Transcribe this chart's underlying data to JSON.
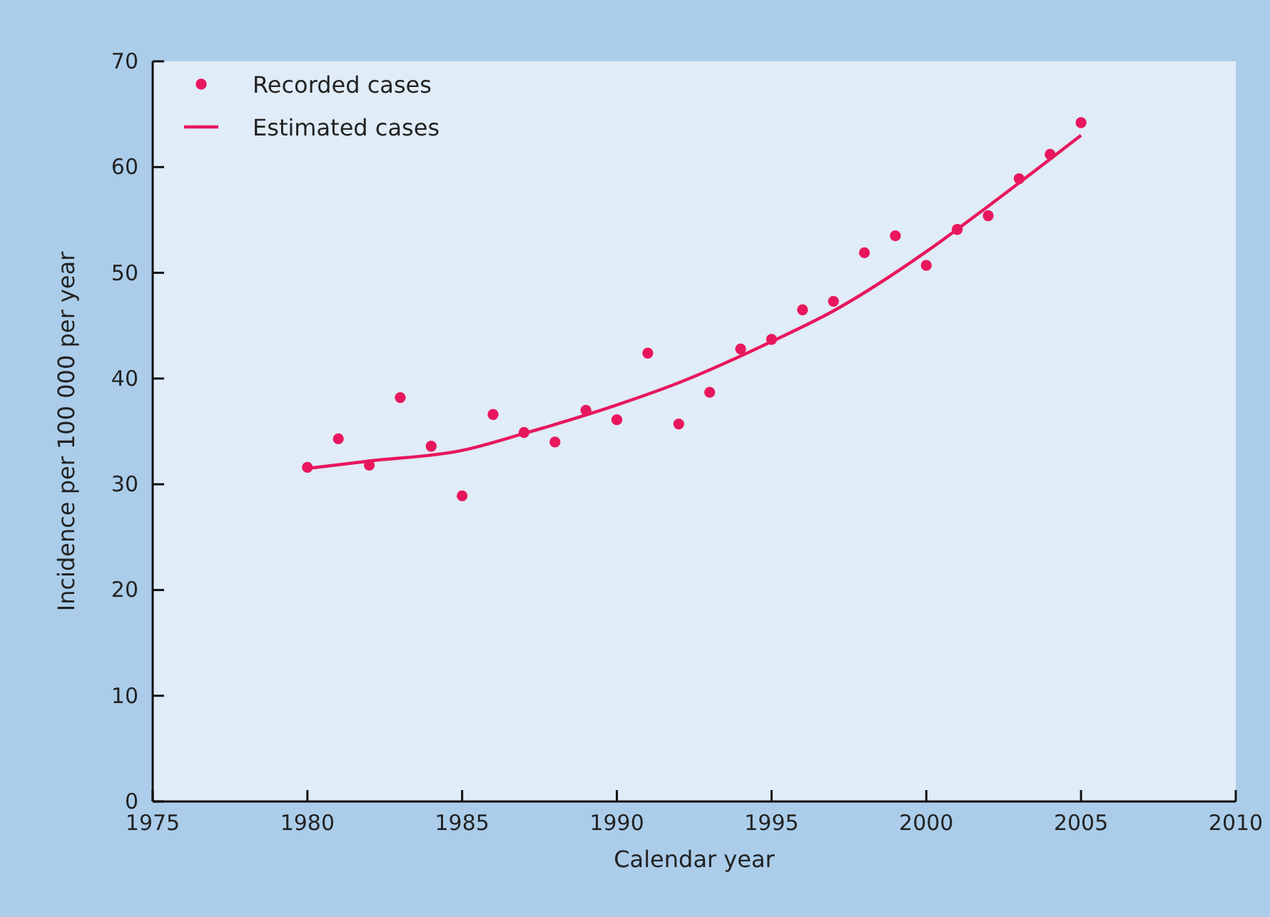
{
  "chart_data": {
    "type": "scatter",
    "xlabel": "Calendar year",
    "ylabel": "Incidence per 100 000 per year",
    "xlim": [
      1975,
      2010
    ],
    "xticks": [
      1975,
      1980,
      1985,
      1990,
      1995,
      2000,
      2005,
      2010
    ],
    "ylim": [
      0,
      70
    ],
    "yticks": [
      0,
      10,
      20,
      30,
      40,
      50,
      60,
      70
    ],
    "legend": "top left",
    "grid": false,
    "series": [
      {
        "name": "Recorded cases",
        "marker": "circle",
        "color": "#e8175d",
        "x": [
          1980,
          1981,
          1982,
          1983,
          1984,
          1985,
          1986,
          1987,
          1988,
          1989,
          1990,
          1991,
          1992,
          1993,
          1994,
          1995,
          1996,
          1997,
          1998,
          1999,
          2000,
          2001,
          2002,
          2003,
          2004,
          2005
        ],
        "values": [
          31.6,
          34.3,
          31.8,
          38.2,
          33.6,
          28.9,
          36.6,
          34.9,
          34.0,
          37.0,
          36.1,
          42.4,
          35.7,
          38.7,
          42.8,
          43.7,
          46.5,
          47.3,
          51.9,
          53.5,
          50.7,
          54.1,
          55.4,
          58.9,
          61.2,
          64.2
        ]
      },
      {
        "name": "Estimated cases",
        "type": "line",
        "line_style": "solid",
        "color": "#e8175d",
        "x": [
          1980,
          1982,
          1985,
          1987,
          1990,
          1992,
          1995,
          1997,
          2000,
          2002,
          2005
        ],
        "values": [
          31.5,
          32.2,
          33.2,
          34.8,
          37.5,
          39.6,
          43.5,
          46.4,
          52.0,
          56.3,
          63.0
        ]
      }
    ]
  }
}
